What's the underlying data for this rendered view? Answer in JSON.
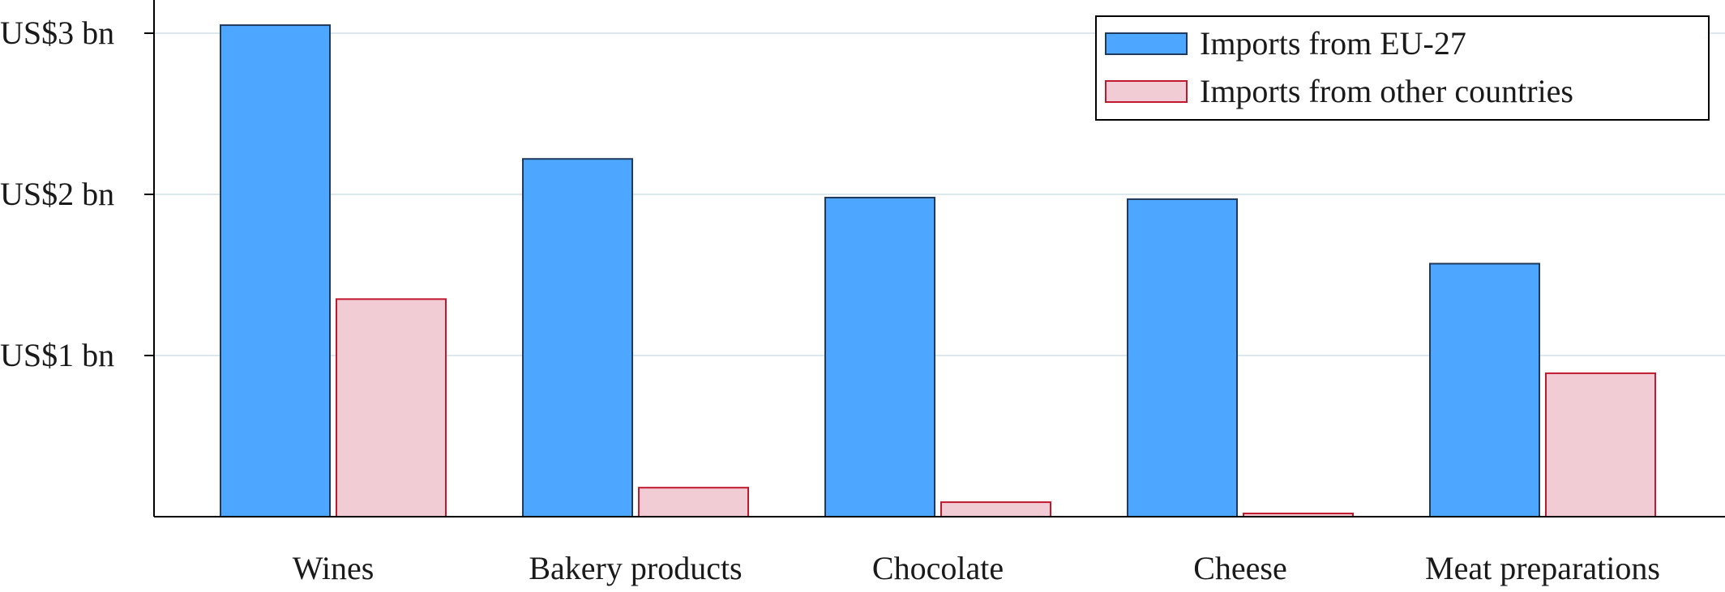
{
  "chart_data": {
    "type": "bar",
    "title": "",
    "xlabel": "",
    "ylabel": "",
    "categories": [
      "Wines",
      "Bakery products",
      "Chocolate",
      "Cheese",
      "Meat preparations"
    ],
    "series": [
      {
        "name": "Imports from EU-27",
        "values": [
          3.05,
          2.22,
          1.98,
          1.97,
          1.57
        ],
        "color": "#4da6ff",
        "stroke": "#1f3a5c"
      },
      {
        "name": "Imports from other countries",
        "values": [
          1.35,
          0.18,
          0.09,
          0.02,
          0.89
        ],
        "color": "#f2ccd4",
        "stroke": "#c0192e"
      }
    ],
    "ylim": [
      0,
      3.2
    ],
    "yticks": [
      {
        "value": 1,
        "label": "US$1 bn"
      },
      {
        "value": 2,
        "label": "US$2 bn"
      },
      {
        "value": 3,
        "label": "US$3 bn"
      }
    ],
    "grid": true,
    "legend_position": "top-right"
  }
}
